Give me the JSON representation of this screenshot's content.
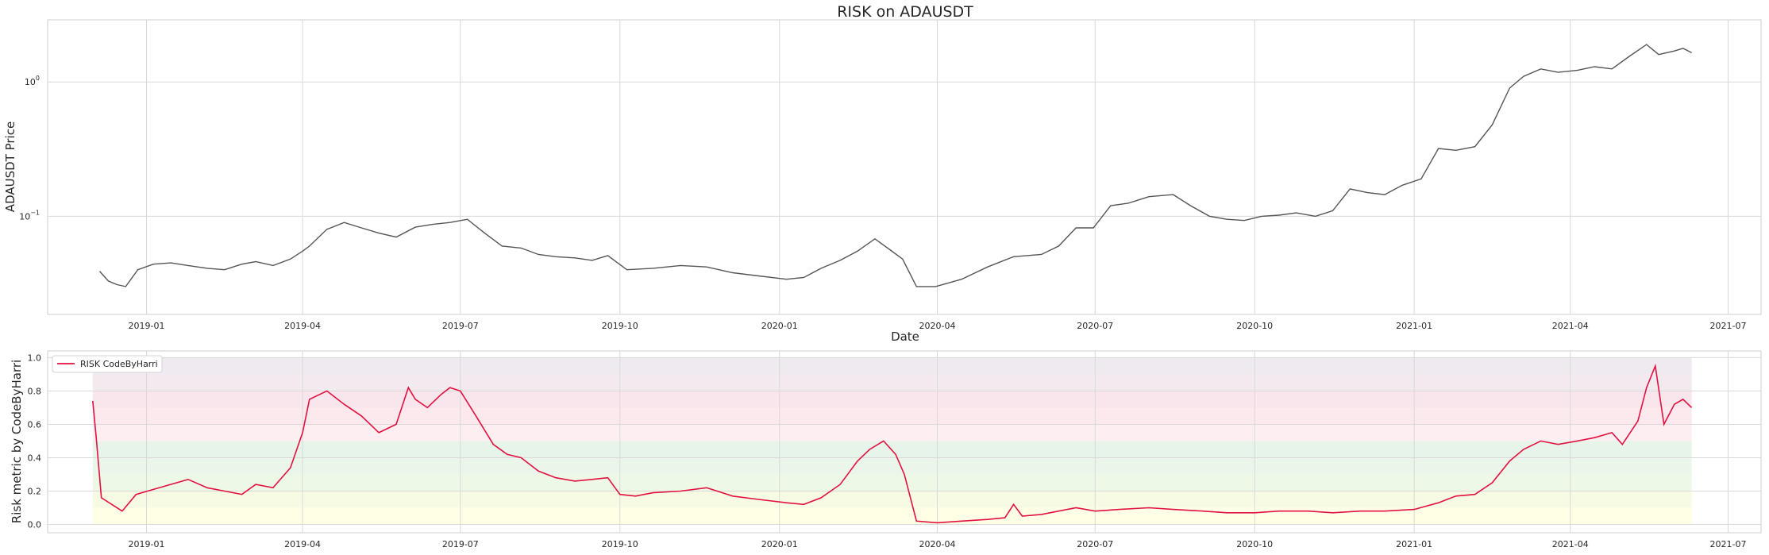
{
  "chart_data": [
    {
      "type": "line",
      "title": "RISK on ADAUSDT",
      "xlabel": "Date",
      "ylabel": "ADAUSDT Price",
      "yscale": "log",
      "grid": true,
      "line_color": "#555555",
      "xlim": [
        "2018-11-05",
        "2021-07-20"
      ],
      "ylim": [
        0.0186,
        2.9
      ],
      "x_ticks": [
        "2019-01",
        "2019-04",
        "2019-07",
        "2019-10",
        "2020-01",
        "2020-04",
        "2020-07",
        "2020-10",
        "2021-01",
        "2021-04",
        "2021-07"
      ],
      "x_tick_dates": [
        "2019-01-01",
        "2019-04-01",
        "2019-07-01",
        "2019-10-01",
        "2020-01-01",
        "2020-04-01",
        "2020-07-01",
        "2020-10-01",
        "2021-01-01",
        "2021-04-01",
        "2021-07-01"
      ],
      "y_ticks": [
        {
          "value": 1,
          "base": "10",
          "exp": "0"
        },
        {
          "value": 0.1,
          "base": "10",
          "exp": "−1"
        }
      ],
      "series": [
        {
          "x": [
            "2018-12-05",
            "2018-12-10",
            "2018-12-15",
            "2018-12-20",
            "2018-12-27",
            "2019-01-05",
            "2019-01-15",
            "2019-01-25",
            "2019-02-05",
            "2019-02-15",
            "2019-02-25",
            "2019-03-05",
            "2019-03-15",
            "2019-03-25",
            "2019-04-01",
            "2019-04-05",
            "2019-04-15",
            "2019-04-25",
            "2019-05-05",
            "2019-05-15",
            "2019-05-25",
            "2019-06-05",
            "2019-06-15",
            "2019-06-25",
            "2019-07-05",
            "2019-07-15",
            "2019-07-25",
            "2019-08-05",
            "2019-08-15",
            "2019-08-25",
            "2019-09-05",
            "2019-09-15",
            "2019-09-24",
            "2019-10-05",
            "2019-10-20",
            "2019-11-05",
            "2019-11-20",
            "2019-12-05",
            "2019-12-20",
            "2020-01-05",
            "2020-01-15",
            "2020-01-25",
            "2020-02-05",
            "2020-02-15",
            "2020-02-25",
            "2020-03-05",
            "2020-03-12",
            "2020-03-20",
            "2020-03-31",
            "2020-04-15",
            "2020-04-30",
            "2020-05-15",
            "2020-05-31",
            "2020-06-10",
            "2020-06-20",
            "2020-06-30",
            "2020-07-10",
            "2020-07-20",
            "2020-08-01",
            "2020-08-15",
            "2020-08-25",
            "2020-09-05",
            "2020-09-15",
            "2020-09-25",
            "2020-10-05",
            "2020-10-15",
            "2020-10-25",
            "2020-11-05",
            "2020-11-15",
            "2020-11-25",
            "2020-12-05",
            "2020-12-15",
            "2020-12-25",
            "2021-01-05",
            "2021-01-15",
            "2021-01-25",
            "2021-02-05",
            "2021-02-15",
            "2021-02-25",
            "2021-03-05",
            "2021-03-15",
            "2021-03-25",
            "2021-04-05",
            "2021-04-15",
            "2021-04-25",
            "2021-05-05",
            "2021-05-15",
            "2021-05-22",
            "2021-05-31",
            "2021-06-05",
            "2021-06-10"
          ],
          "y": [
            0.039,
            0.033,
            0.031,
            0.03,
            0.04,
            0.044,
            0.045,
            0.043,
            0.041,
            0.04,
            0.044,
            0.046,
            0.043,
            0.048,
            0.055,
            0.06,
            0.08,
            0.09,
            0.082,
            0.075,
            0.07,
            0.083,
            0.087,
            0.09,
            0.095,
            0.075,
            0.06,
            0.058,
            0.052,
            0.05,
            0.049,
            0.047,
            0.051,
            0.04,
            0.041,
            0.043,
            0.042,
            0.038,
            0.036,
            0.034,
            0.035,
            0.041,
            0.047,
            0.055,
            0.068,
            0.056,
            0.048,
            0.03,
            0.03,
            0.034,
            0.042,
            0.05,
            0.052,
            0.06,
            0.082,
            0.082,
            0.12,
            0.125,
            0.14,
            0.145,
            0.12,
            0.1,
            0.095,
            0.093,
            0.1,
            0.102,
            0.106,
            0.1,
            0.11,
            0.16,
            0.15,
            0.145,
            0.17,
            0.19,
            0.32,
            0.31,
            0.33,
            0.48,
            0.9,
            1.1,
            1.25,
            1.18,
            1.22,
            1.3,
            1.25,
            1.55,
            1.9,
            1.6,
            1.7,
            1.78,
            1.65
          ]
        }
      ]
    },
    {
      "type": "line",
      "ylabel": "Risk metric by CodeByHarri",
      "xlabel": "",
      "grid": true,
      "line_color": "#e11141",
      "legend": {
        "placement": "top-left",
        "entries": [
          "RISK CodeByHarri"
        ]
      },
      "xlim": [
        "2018-11-05",
        "2021-07-20"
      ],
      "ylim": [
        -0.05,
        1.04
      ],
      "x_ticks": [
        "2019-01",
        "2019-04",
        "2019-07",
        "2019-10",
        "2020-01",
        "2020-04",
        "2020-07",
        "2020-10",
        "2021-01",
        "2021-04",
        "2021-07"
      ],
      "x_tick_dates": [
        "2019-01-01",
        "2019-04-01",
        "2019-07-01",
        "2019-10-01",
        "2020-01-01",
        "2020-04-01",
        "2020-07-01",
        "2020-10-01",
        "2021-01-01",
        "2021-04-01",
        "2021-07-01"
      ],
      "y_ticks": [
        "0.0",
        "0.2",
        "0.4",
        "0.6",
        "0.8",
        "1.0"
      ],
      "y_tick_values": [
        0,
        0.2,
        0.4,
        0.6,
        0.8,
        1.0
      ],
      "bands": [
        {
          "from": 0.0,
          "to": 0.1,
          "color": "#ffffe5"
        },
        {
          "from": 0.1,
          "to": 0.2,
          "color": "#f7fbe3"
        },
        {
          "from": 0.2,
          "to": 0.3,
          "color": "#eef8e6"
        },
        {
          "from": 0.3,
          "to": 0.4,
          "color": "#ebf6ea"
        },
        {
          "from": 0.4,
          "to": 0.5,
          "color": "#e7f4ea"
        },
        {
          "from": 0.5,
          "to": 0.6,
          "color": "#fdeef1"
        },
        {
          "from": 0.6,
          "to": 0.7,
          "color": "#fbe9ee"
        },
        {
          "from": 0.7,
          "to": 0.8,
          "color": "#f9e6ec"
        },
        {
          "from": 0.8,
          "to": 0.9,
          "color": "#f3eaef"
        },
        {
          "from": 0.9,
          "to": 1.0,
          "color": "#eeeaef"
        }
      ],
      "series": [
        {
          "name": "RISK CodeByHarri",
          "x": [
            "2018-12-01",
            "2018-12-03",
            "2018-12-06",
            "2018-12-12",
            "2018-12-18",
            "2018-12-26",
            "2019-01-05",
            "2019-01-15",
            "2019-01-25",
            "2019-02-05",
            "2019-02-15",
            "2019-02-25",
            "2019-03-05",
            "2019-03-15",
            "2019-03-25",
            "2019-04-01",
            "2019-04-05",
            "2019-04-15",
            "2019-04-25",
            "2019-05-05",
            "2019-05-15",
            "2019-05-25",
            "2019-06-01",
            "2019-06-05",
            "2019-06-12",
            "2019-06-20",
            "2019-06-25",
            "2019-07-01",
            "2019-07-10",
            "2019-07-20",
            "2019-07-28",
            "2019-08-05",
            "2019-08-15",
            "2019-08-25",
            "2019-09-05",
            "2019-09-15",
            "2019-09-24",
            "2019-10-01",
            "2019-10-10",
            "2019-10-20",
            "2019-11-05",
            "2019-11-20",
            "2019-12-05",
            "2019-12-20",
            "2020-01-05",
            "2020-01-15",
            "2020-01-25",
            "2020-02-05",
            "2020-02-15",
            "2020-02-22",
            "2020-03-01",
            "2020-03-08",
            "2020-03-13",
            "2020-03-20",
            "2020-04-01",
            "2020-04-15",
            "2020-04-30",
            "2020-05-10",
            "2020-05-15",
            "2020-05-20",
            "2020-05-31",
            "2020-06-10",
            "2020-06-20",
            "2020-07-01",
            "2020-07-15",
            "2020-08-01",
            "2020-08-15",
            "2020-09-01",
            "2020-09-15",
            "2020-10-01",
            "2020-10-15",
            "2020-11-01",
            "2020-11-15",
            "2020-12-01",
            "2020-12-15",
            "2021-01-01",
            "2021-01-15",
            "2021-01-25",
            "2021-02-05",
            "2021-02-15",
            "2021-02-25",
            "2021-03-05",
            "2021-03-15",
            "2021-03-25",
            "2021-04-05",
            "2021-04-15",
            "2021-04-25",
            "2021-05-01",
            "2021-05-10",
            "2021-05-15",
            "2021-05-20",
            "2021-05-25",
            "2021-05-31",
            "2021-06-05",
            "2021-06-10"
          ],
          "y": [
            0.74,
            0.52,
            0.16,
            0.12,
            0.08,
            0.18,
            0.21,
            0.24,
            0.27,
            0.22,
            0.2,
            0.18,
            0.24,
            0.22,
            0.34,
            0.55,
            0.75,
            0.8,
            0.72,
            0.65,
            0.55,
            0.6,
            0.82,
            0.75,
            0.7,
            0.78,
            0.82,
            0.8,
            0.65,
            0.48,
            0.42,
            0.4,
            0.32,
            0.28,
            0.26,
            0.27,
            0.28,
            0.18,
            0.17,
            0.19,
            0.2,
            0.22,
            0.17,
            0.15,
            0.13,
            0.12,
            0.16,
            0.24,
            0.38,
            0.45,
            0.5,
            0.42,
            0.3,
            0.02,
            0.01,
            0.02,
            0.03,
            0.04,
            0.12,
            0.05,
            0.06,
            0.08,
            0.1,
            0.08,
            0.09,
            0.1,
            0.09,
            0.08,
            0.07,
            0.07,
            0.08,
            0.08,
            0.07,
            0.08,
            0.08,
            0.09,
            0.13,
            0.17,
            0.18,
            0.25,
            0.38,
            0.45,
            0.5,
            0.48,
            0.5,
            0.52,
            0.55,
            0.48,
            0.62,
            0.82,
            0.95,
            0.6,
            0.72,
            0.75,
            0.7
          ]
        }
      ]
    }
  ]
}
